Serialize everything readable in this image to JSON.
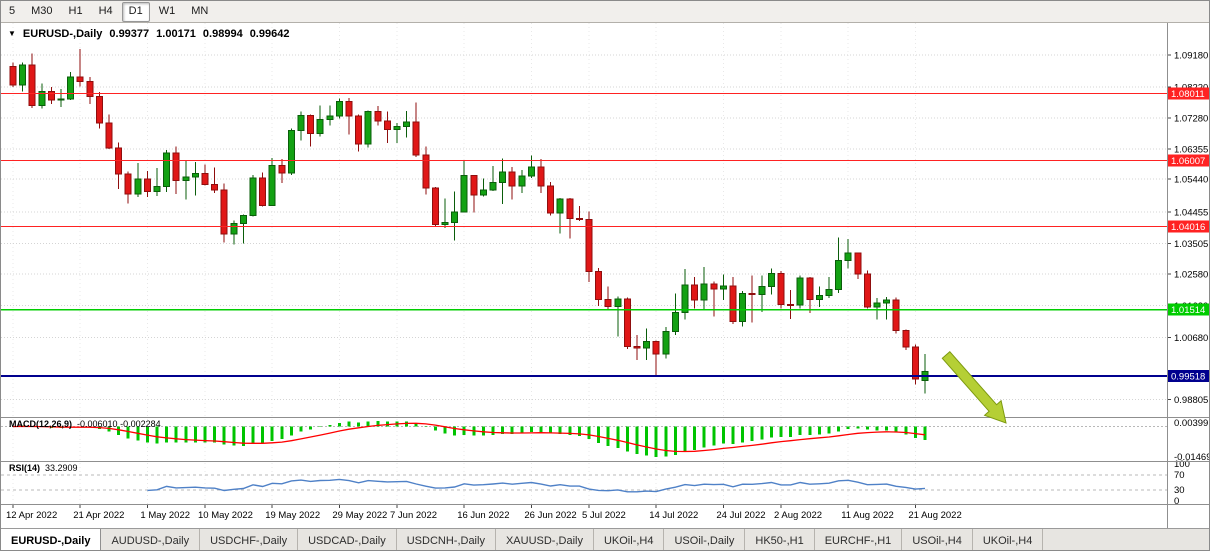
{
  "toolbar": {
    "periods": [
      {
        "label": "5",
        "active": false
      },
      {
        "label": "M30",
        "active": false
      },
      {
        "label": "H1",
        "active": false
      },
      {
        "label": "H4",
        "active": false
      },
      {
        "label": "D1",
        "active": true
      },
      {
        "label": "W1",
        "active": false
      },
      {
        "label": "MN",
        "active": false
      }
    ]
  },
  "colors": {
    "bull": "#13a113",
    "bull_border": "#0a5d0a",
    "bear": "#e01717",
    "bear_border": "#8f0e0e",
    "grid": "#d4d4d4",
    "vgrid": "#e8e8e8",
    "macd_hist": "#00c400",
    "macd_signal": "#ff0000",
    "rsi_line": "#4f81c7",
    "annotation_arrow_fill": "#b5cf35",
    "annotation_arrow_stroke": "#7d9a10",
    "divider": "#8f8f8f"
  },
  "chart_data": {
    "type": "candlestick",
    "symbol_title": "EURUSD-,Daily",
    "ohlc_display": {
      "open": "0.99377",
      "high": "1.00171",
      "low": "0.98994",
      "close": "0.99642"
    },
    "y_axis_ticks": [
      "1.09180",
      "1.08220",
      "1.07280",
      "1.06355",
      "1.05440",
      "1.04455",
      "1.03505",
      "1.02580",
      "1.01630",
      "1.00680",
      "0.98805"
    ],
    "x_axis_ticks": [
      {
        "label": "12 Apr 2022",
        "index": 0
      },
      {
        "label": "21 Apr 2022",
        "index": 7
      },
      {
        "label": "1 May 2022",
        "index": 14
      },
      {
        "label": "10 May 2022",
        "index": 20
      },
      {
        "label": "19 May 2022",
        "index": 27
      },
      {
        "label": "29 May 2022",
        "index": 34
      },
      {
        "label": "7 Jun 2022",
        "index": 40
      },
      {
        "label": "16 Jun 2022",
        "index": 47
      },
      {
        "label": "26 Jun 2022",
        "index": 54
      },
      {
        "label": "5 Jul 2022",
        "index": 60
      },
      {
        "label": "14 Jul 2022",
        "index": 67
      },
      {
        "label": "24 Jul 2022",
        "index": 74
      },
      {
        "label": "2 Aug 2022",
        "index": 80
      },
      {
        "label": "11 Aug 2022",
        "index": 87
      },
      {
        "label": "21 Aug 2022",
        "index": 94
      }
    ],
    "price_lines": [
      {
        "label": "1.08011",
        "value": 1.08011,
        "color": "#ff2222",
        "width": 1
      },
      {
        "label": "1.06007",
        "value": 1.06007,
        "color": "#ff2222",
        "width": 1
      },
      {
        "label": "1.04016",
        "value": 1.04016,
        "color": "#ff2222",
        "width": 1
      },
      {
        "label": "1.01514",
        "value": 1.01514,
        "color": "#00cc00",
        "width": 1.4
      },
      {
        "label": "0.99518",
        "value": 0.99518,
        "color": "#00008e",
        "width": 2
      }
    ],
    "candles": [
      [
        1.0883,
        1.0895,
        1.0821,
        1.0827
      ],
      [
        1.0827,
        1.0895,
        1.0808,
        1.0887
      ],
      [
        1.0887,
        1.0923,
        1.0758,
        1.0766
      ],
      [
        1.0766,
        1.0832,
        1.0756,
        1.0808
      ],
      [
        1.0808,
        1.0822,
        1.077,
        1.0782
      ],
      [
        1.0782,
        1.0815,
        1.0761,
        1.0786
      ],
      [
        1.0786,
        1.0867,
        1.0782,
        1.0851
      ],
      [
        1.0851,
        1.0936,
        1.0823,
        1.0838
      ],
      [
        1.0838,
        1.0852,
        1.077,
        1.0793
      ],
      [
        1.0793,
        1.0806,
        1.0696,
        1.0713
      ],
      [
        1.0713,
        1.0738,
        1.0635,
        1.0638
      ],
      [
        1.0638,
        1.0655,
        1.0514,
        1.056
      ],
      [
        1.056,
        1.0567,
        1.0471,
        1.0499
      ],
      [
        1.0499,
        1.0593,
        1.0491,
        1.0545
      ],
      [
        1.0545,
        1.0568,
        1.049,
        1.0507
      ],
      [
        1.0507,
        1.0578,
        1.0493,
        1.0522
      ],
      [
        1.0522,
        1.0632,
        1.0506,
        1.0623
      ],
      [
        1.0623,
        1.0642,
        1.05,
        1.054
      ],
      [
        1.054,
        1.0599,
        1.0483,
        1.055
      ],
      [
        1.055,
        1.0595,
        1.0495,
        1.0561
      ],
      [
        1.0561,
        1.0588,
        1.0525,
        1.0528
      ],
      [
        1.0528,
        1.0579,
        1.0503,
        1.0512
      ],
      [
        1.0512,
        1.0531,
        1.0354,
        1.0379
      ],
      [
        1.0379,
        1.0419,
        1.0348,
        1.0411
      ],
      [
        1.0411,
        1.0437,
        1.035,
        1.0434
      ],
      [
        1.0434,
        1.0557,
        1.0432,
        1.0548
      ],
      [
        1.0548,
        1.0564,
        1.0461,
        1.0465
      ],
      [
        1.0465,
        1.0607,
        1.0463,
        1.0585
      ],
      [
        1.0585,
        1.0604,
        1.0533,
        1.0563
      ],
      [
        1.0563,
        1.0697,
        1.0556,
        1.0691
      ],
      [
        1.0691,
        1.0748,
        1.0661,
        1.0735
      ],
      [
        1.0735,
        1.0739,
        1.0642,
        1.0681
      ],
      [
        1.0681,
        1.0765,
        1.0672,
        1.0723
      ],
      [
        1.0723,
        1.0765,
        1.0706,
        1.0734
      ],
      [
        1.0734,
        1.0787,
        1.0726,
        1.0778
      ],
      [
        1.0778,
        1.0789,
        1.0679,
        1.0734
      ],
      [
        1.0734,
        1.0739,
        1.0627,
        1.065
      ],
      [
        1.065,
        1.075,
        1.064,
        1.0748
      ],
      [
        1.0748,
        1.0764,
        1.0706,
        1.0719
      ],
      [
        1.0719,
        1.0748,
        1.0653,
        1.0694
      ],
      [
        1.0694,
        1.0713,
        1.0653,
        1.0703
      ],
      [
        1.0703,
        1.0749,
        1.067,
        1.0716
      ],
      [
        1.0716,
        1.0774,
        1.0611,
        1.0617
      ],
      [
        1.0617,
        1.0642,
        1.0498,
        1.0517
      ],
      [
        1.0517,
        1.0521,
        1.04,
        1.0408
      ],
      [
        1.0408,
        1.0485,
        1.0397,
        1.0414
      ],
      [
        1.0414,
        1.0507,
        1.0359,
        1.0445
      ],
      [
        1.0445,
        1.0601,
        1.0444,
        1.0555
      ],
      [
        1.0555,
        1.0557,
        1.0444,
        1.0496
      ],
      [
        1.0496,
        1.0546,
        1.0492,
        1.0511
      ],
      [
        1.0511,
        1.0583,
        1.0508,
        1.0534
      ],
      [
        1.0534,
        1.0606,
        1.0469,
        1.0566
      ],
      [
        1.0566,
        1.058,
        1.0482,
        1.0523
      ],
      [
        1.0523,
        1.0572,
        1.0503,
        1.0553
      ],
      [
        1.0553,
        1.0615,
        1.0547,
        1.0581
      ],
      [
        1.0581,
        1.0605,
        1.0503,
        1.0523
      ],
      [
        1.0523,
        1.0535,
        1.0435,
        1.0442
      ],
      [
        1.0442,
        1.0488,
        1.0381,
        1.0484
      ],
      [
        1.0484,
        1.0487,
        1.0365,
        1.0425
      ],
      [
        1.0425,
        1.0463,
        1.0418,
        1.0423
      ],
      [
        1.0423,
        1.0446,
        1.0235,
        1.0266
      ],
      [
        1.0266,
        1.0277,
        1.0162,
        1.0181
      ],
      [
        1.0181,
        1.0221,
        1.0148,
        1.016
      ],
      [
        1.016,
        1.0191,
        1.0071,
        1.0183
      ],
      [
        1.0183,
        1.0187,
        1.0033,
        1.004
      ],
      [
        1.004,
        1.0075,
        0.9999,
        1.0036
      ],
      [
        1.0036,
        1.0095,
        1.0,
        1.0056
      ],
      [
        1.0056,
        1.0059,
        0.9952,
        1.0018
      ],
      [
        1.0018,
        1.0099,
        1.0004,
        1.0086
      ],
      [
        1.0086,
        1.0199,
        1.0075,
        1.0142
      ],
      [
        1.0142,
        1.0273,
        1.0121,
        1.0226
      ],
      [
        1.0226,
        1.025,
        1.0155,
        1.018
      ],
      [
        1.018,
        1.0279,
        1.0153,
        1.0229
      ],
      [
        1.0229,
        1.0236,
        1.013,
        1.0213
      ],
      [
        1.0213,
        1.0257,
        1.018,
        1.0222
      ],
      [
        1.0222,
        1.025,
        1.0108,
        1.0115
      ],
      [
        1.0115,
        1.0208,
        1.01,
        1.02
      ],
      [
        1.02,
        1.0254,
        1.0113,
        1.0196
      ],
      [
        1.0196,
        1.0254,
        1.0144,
        1.0221
      ],
      [
        1.0221,
        1.0275,
        1.0197,
        1.026
      ],
      [
        1.026,
        1.0268,
        1.0155,
        1.0166
      ],
      [
        1.0166,
        1.021,
        1.0123,
        1.0165
      ],
      [
        1.0165,
        1.0254,
        1.0155,
        1.0247
      ],
      [
        1.0247,
        1.025,
        1.0141,
        1.0181
      ],
      [
        1.0181,
        1.0221,
        1.0159,
        1.0194
      ],
      [
        1.0194,
        1.0249,
        1.0186,
        1.0212
      ],
      [
        1.0212,
        1.0368,
        1.0202,
        1.0299
      ],
      [
        1.0299,
        1.0364,
        1.0275,
        1.0321
      ],
      [
        1.0321,
        1.0323,
        1.0243,
        1.0258
      ],
      [
        1.0258,
        1.0269,
        1.0154,
        1.016
      ],
      [
        1.016,
        1.0186,
        1.0121,
        1.0171
      ],
      [
        1.0171,
        1.0189,
        1.0121,
        1.018
      ],
      [
        1.018,
        1.0188,
        1.008,
        1.0089
      ],
      [
        1.0089,
        1.0092,
        1.0029,
        1.0039
      ],
      [
        1.0039,
        1.0046,
        0.9926,
        0.9943
      ],
      [
        0.99377,
        1.00171,
        0.98994,
        0.99642
      ]
    ],
    "indicators": {
      "macd": {
        "label": "MACD(12,26,9)",
        "value_text": "-0.006010 -0.002284",
        "params": [
          12,
          26,
          9
        ],
        "scale_labels": [
          "0.00399",
          "-0.01469"
        ]
      },
      "rsi": {
        "label": "RSI(14)",
        "value": "33.2909",
        "period": 14,
        "axis_labels": [
          "100",
          "70",
          "30",
          "0"
        ],
        "levels": [
          70,
          30
        ]
      }
    }
  },
  "tabs": [
    {
      "label": "EURUSD-,Daily",
      "active": true
    },
    {
      "label": "AUDUSD-,Daily",
      "active": false
    },
    {
      "label": "USDCHF-,Daily",
      "active": false
    },
    {
      "label": "USDCAD-,Daily",
      "active": false
    },
    {
      "label": "USDCNH-,Daily",
      "active": false
    },
    {
      "label": "XAUUSD-,Daily",
      "active": false
    },
    {
      "label": "UKOil-,H4",
      "active": false
    },
    {
      "label": "USOil-,Daily",
      "active": false
    },
    {
      "label": "HK50-,H1",
      "active": false
    },
    {
      "label": "EURCHF-,H1",
      "active": false
    },
    {
      "label": "USOil-,H4",
      "active": false
    },
    {
      "label": "UKOil-,H4",
      "active": false
    }
  ]
}
